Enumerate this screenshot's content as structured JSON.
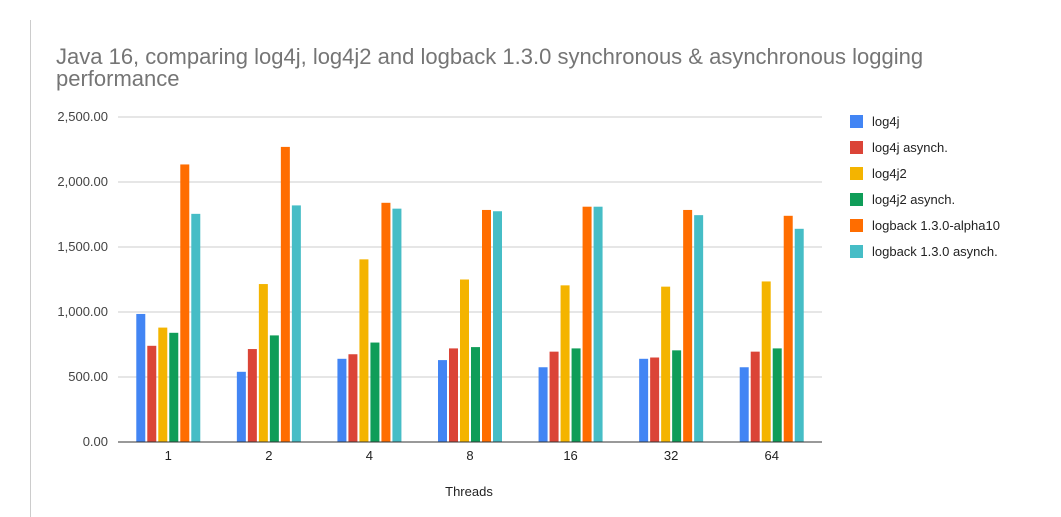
{
  "chart_data": {
    "type": "bar",
    "title": "Java 16, comparing log4j, log4j2 and logback 1.3.0 synchronous & asynchronous logging performance",
    "xlabel": "Threads",
    "ylabel": "",
    "ylim": [
      0,
      2500
    ],
    "yticks": [
      "0.00",
      "500.00",
      "1,000.00",
      "1,500.00",
      "2,000.00",
      "2,500.00"
    ],
    "grid": true,
    "legend_position": "right",
    "categories": [
      "1",
      "2",
      "4",
      "8",
      "16",
      "32",
      "64"
    ],
    "series": [
      {
        "name": "log4j",
        "color": "#4285f4",
        "values": [
          985,
          540,
          640,
          630,
          575,
          640,
          575
        ]
      },
      {
        "name": "log4j asynch.",
        "color": "#db4437",
        "values": [
          740,
          715,
          675,
          720,
          695,
          650,
          695
        ]
      },
      {
        "name": "log4j2",
        "color": "#f4b400",
        "values": [
          880,
          1215,
          1405,
          1250,
          1205,
          1195,
          1235
        ]
      },
      {
        "name": "log4j2 asynch.",
        "color": "#0f9d58",
        "values": [
          840,
          820,
          765,
          730,
          720,
          705,
          720
        ]
      },
      {
        "name": "logback 1.3.0-alpha10",
        "color": "#ff6d00",
        "values": [
          2135,
          2270,
          1840,
          1785,
          1810,
          1785,
          1740
        ]
      },
      {
        "name": "logback 1.3.0 asynch.",
        "color": "#46bdc6",
        "values": [
          1755,
          1820,
          1795,
          1775,
          1810,
          1745,
          1640
        ]
      }
    ]
  }
}
